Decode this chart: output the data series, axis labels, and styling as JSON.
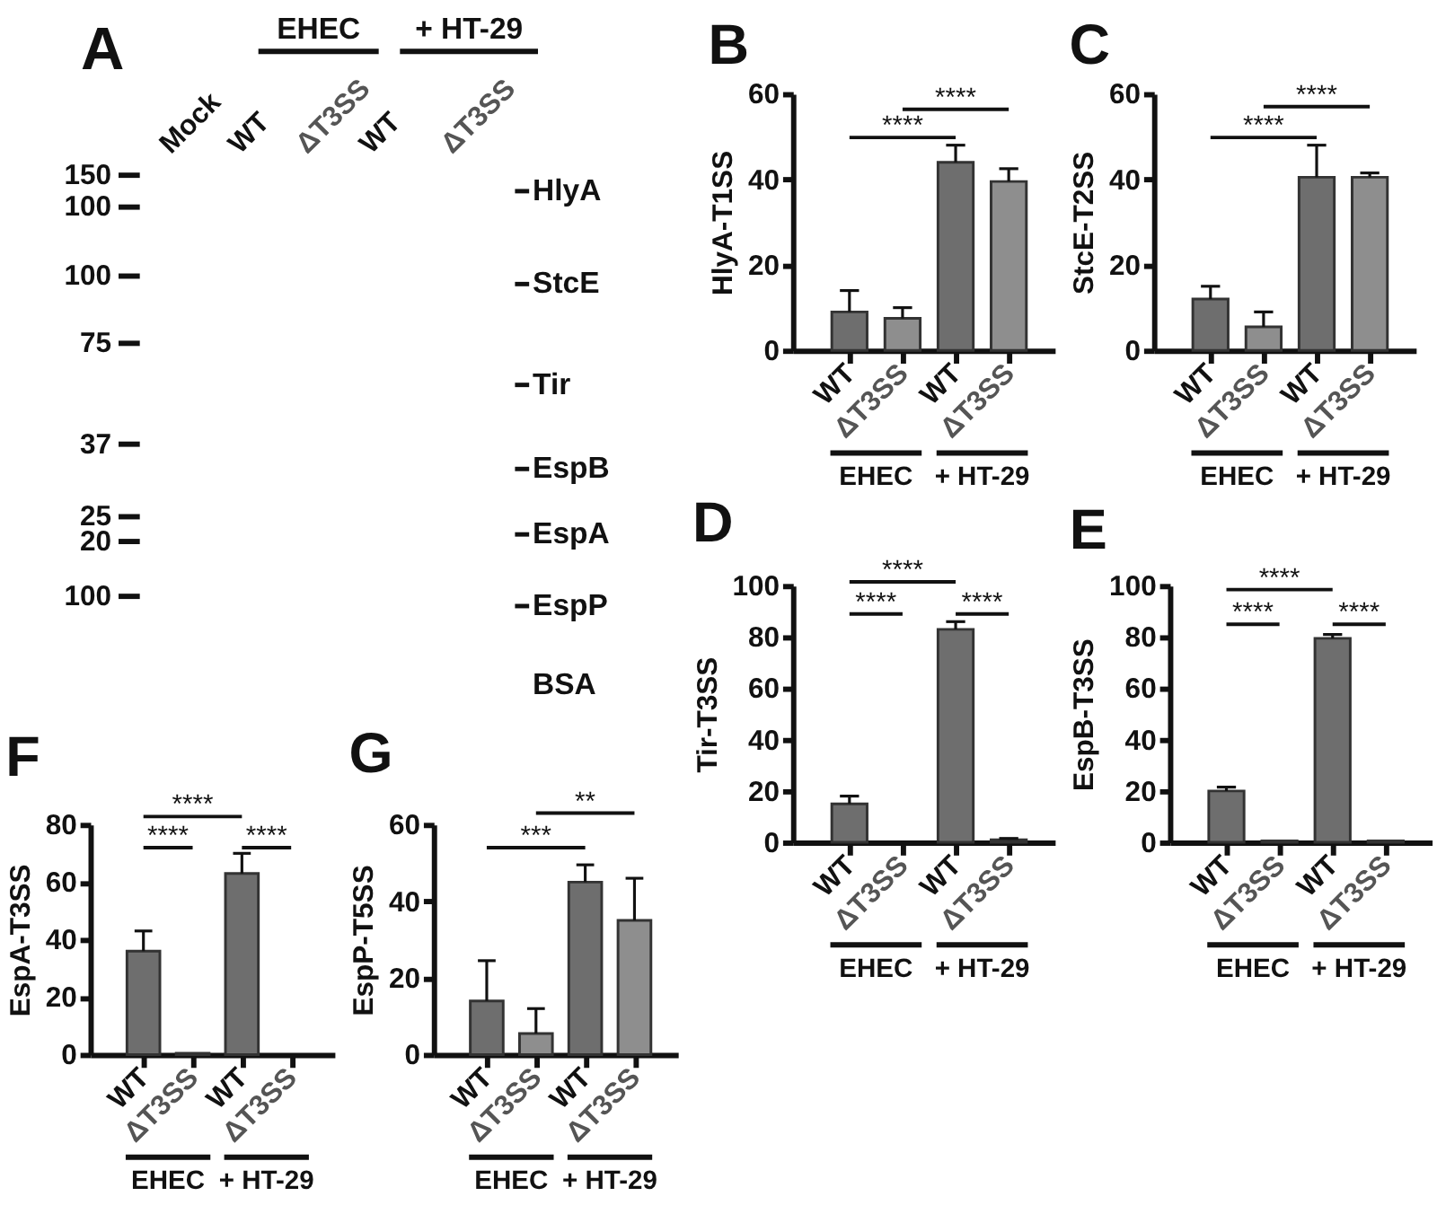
{
  "chart_data": [
    {
      "type": "other",
      "title": "A",
      "categories": [
        "Mock",
        "WT",
        "ΔT3SS",
        "WT",
        "ΔT3SS"
      ],
      "y_categories": [
        "HlyA",
        "StcE",
        "Tir",
        "EspB",
        "EspA",
        "EspP",
        "BSA"
      ],
      "annotations": [
        "EHEC",
        "+ HT-29",
        "150",
        "100",
        "100",
        "75",
        "37",
        "25",
        "20",
        "100"
      ]
    },
    {
      "type": "bar",
      "title": "B",
      "ylabel": "HlyA-T1SS",
      "categories": [
        "WT",
        "ΔT3SS",
        "WT",
        "ΔT3SS"
      ],
      "values": [
        9,
        7.5,
        44,
        39.5
      ],
      "colors": [
        "#6e6e6e",
        "#8e8e8e",
        "#6e6e6e",
        "#8e8e8e"
      ],
      "errors": [
        [
          9,
          14
        ],
        [
          7.5,
          10
        ],
        [
          44,
          48
        ],
        [
          39.5,
          42.5
        ]
      ],
      "ylim": [
        0,
        60
      ],
      "yticks": [
        0,
        20,
        40,
        60
      ],
      "annotations": [
        "****",
        "****",
        "EHEC",
        "+ HT-29"
      ]
    },
    {
      "type": "bar",
      "title": "C",
      "ylabel": "StcE-T2SS",
      "categories": [
        "WT",
        "ΔT3SS",
        "WT",
        "ΔT3SS"
      ],
      "values": [
        12,
        5.5,
        40.5,
        40.5
      ],
      "colors": [
        "#6e6e6e",
        "#8e8e8e",
        "#6e6e6e",
        "#8e8e8e"
      ],
      "errors": [
        [
          12,
          15
        ],
        [
          5.5,
          9
        ],
        [
          40.5,
          48
        ],
        [
          40.5,
          41.5
        ]
      ],
      "ylim": [
        0,
        60
      ],
      "yticks": [
        0,
        20,
        40,
        60
      ],
      "annotations": [
        "****",
        "****",
        "EHEC",
        "+ HT-29"
      ]
    },
    {
      "type": "bar",
      "title": "D",
      "ylabel": "Tir-T3SS",
      "categories": [
        "WT",
        "ΔT3SS",
        "WT",
        "ΔT3SS"
      ],
      "values": [
        15,
        null,
        83,
        1
      ],
      "colors": [
        "#6e6e6e",
        "#6e6e6e",
        "#6e6e6e",
        "#6e6e6e"
      ],
      "errors": [
        [
          15,
          18
        ],
        null,
        [
          83,
          86
        ],
        [
          1,
          1.5
        ]
      ],
      "ylim": [
        0,
        100
      ],
      "yticks": [
        0,
        20,
        40,
        60,
        80,
        100
      ],
      "annotations": [
        "****",
        "****",
        "****",
        "EHEC",
        "+ HT-29"
      ]
    },
    {
      "type": "bar",
      "title": "E",
      "ylabel": "EspB-T3SS",
      "categories": [
        "WT",
        "ΔT3SS",
        "WT",
        "ΔT3SS"
      ],
      "values": [
        20,
        0.5,
        79.5,
        0.5
      ],
      "colors": [
        "#6e6e6e",
        "#6e6e6e",
        "#6e6e6e",
        "#6e6e6e"
      ],
      "errors": [
        [
          20,
          21.5
        ],
        null,
        [
          79.5,
          81
        ],
        null
      ],
      "ylim": [
        0,
        100
      ],
      "yticks": [
        0,
        20,
        40,
        60,
        80,
        100
      ],
      "annotations": [
        "****",
        "****",
        "****",
        "EHEC",
        "+ HT-29"
      ]
    },
    {
      "type": "bar",
      "title": "F",
      "ylabel": "EspA-T3SS",
      "categories": [
        "WT",
        "ΔT3SS",
        "WT",
        "ΔT3SS"
      ],
      "values": [
        36,
        0.5,
        63,
        null
      ],
      "colors": [
        "#6e6e6e",
        "#6e6e6e",
        "#6e6e6e",
        "#6e6e6e"
      ],
      "errors": [
        [
          36,
          43
        ],
        null,
        [
          63,
          70
        ],
        null
      ],
      "ylim": [
        0,
        80
      ],
      "yticks": [
        0,
        20,
        40,
        60,
        80
      ],
      "annotations": [
        "****",
        "****",
        "****",
        "EHEC",
        "+ HT-29"
      ]
    },
    {
      "type": "bar",
      "title": "G",
      "ylabel": "EspP-T5SS",
      "categories": [
        "WT",
        "ΔT3SS",
        "WT",
        "ΔT3SS"
      ],
      "values": [
        14,
        5.5,
        45,
        35
      ],
      "colors": [
        "#6e6e6e",
        "#8e8e8e",
        "#6e6e6e",
        "#8e8e8e"
      ],
      "errors": [
        [
          14,
          24.5
        ],
        [
          5.5,
          12
        ],
        [
          45,
          49.5
        ],
        [
          35,
          46
        ]
      ],
      "ylim": [
        0,
        60
      ],
      "yticks": [
        0,
        20,
        40,
        60
      ],
      "annotations": [
        "***",
        "**",
        "EHEC",
        "+ HT-29"
      ]
    }
  ]
}
